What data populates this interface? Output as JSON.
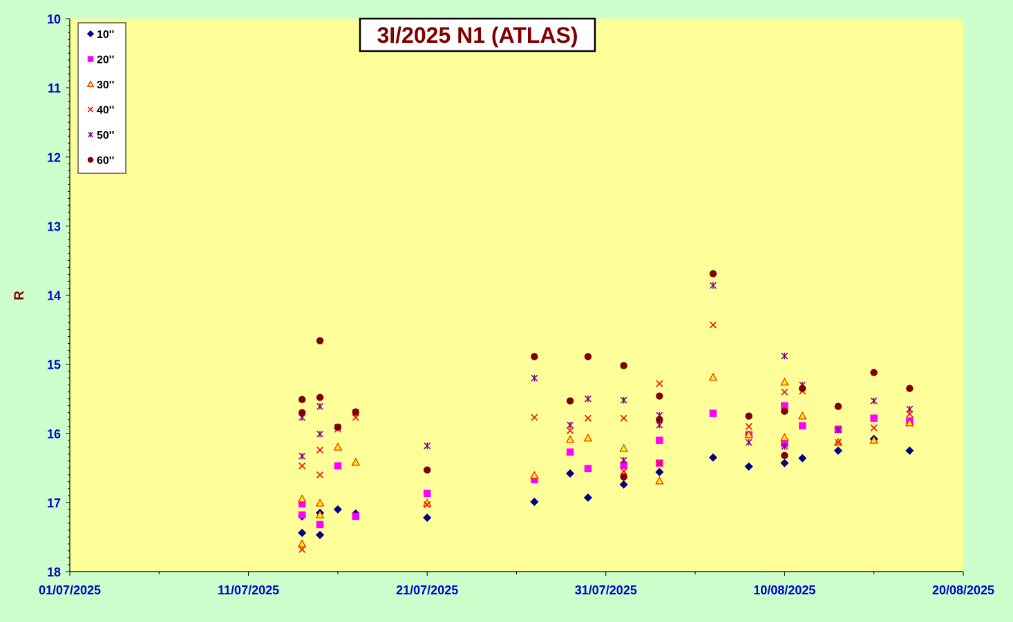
{
  "chart_data": {
    "type": "scatter",
    "title": "3I/2025 N1 (ATLAS)",
    "xlabel": "",
    "ylabel": "R",
    "x_axis": {
      "min": "2025-07-01",
      "max": "2025-08-20",
      "tick_labels": [
        "01/07/2025",
        "11/07/2025",
        "21/07/2025",
        "31/07/2025",
        "10/08/2025",
        "20/08/2025"
      ],
      "tick_values": [
        "2025-07-01",
        "2025-07-11",
        "2025-07-21",
        "2025-07-31",
        "2025-08-10",
        "2025-08-20"
      ]
    },
    "y_axis": {
      "min": 10,
      "max": 18,
      "reversed": true,
      "tick_labels": [
        "10",
        "11",
        "12",
        "13",
        "14",
        "15",
        "16",
        "17",
        "18"
      ],
      "tick_values": [
        10,
        11,
        12,
        13,
        14,
        15,
        16,
        17,
        18
      ]
    },
    "grid": false,
    "legend_position": "top-left",
    "colors": {
      "page_background": "#ccffcc",
      "plot_background": "#ffff99",
      "axis_text": "#0000cc",
      "title_text": "#800000",
      "label_text": "#800000"
    },
    "series": [
      {
        "name": "10''",
        "marker": "diamond",
        "color": "#000080",
        "points": [
          {
            "x": "2025-07-14",
            "y": 17.44
          },
          {
            "x": "2025-07-14",
            "y": 17.2
          },
          {
            "x": "2025-07-15",
            "y": 17.47
          },
          {
            "x": "2025-07-15",
            "y": 17.15
          },
          {
            "x": "2025-07-16",
            "y": 17.1
          },
          {
            "x": "2025-07-17",
            "y": 17.16
          },
          {
            "x": "2025-07-21",
            "y": 17.22
          },
          {
            "x": "2025-07-27",
            "y": 16.99
          },
          {
            "x": "2025-07-29",
            "y": 16.58
          },
          {
            "x": "2025-07-30",
            "y": 16.93
          },
          {
            "x": "2025-08-01",
            "y": 16.74
          },
          {
            "x": "2025-08-03",
            "y": 16.56
          },
          {
            "x": "2025-08-06",
            "y": 16.35
          },
          {
            "x": "2025-08-08",
            "y": 16.48
          },
          {
            "x": "2025-08-10",
            "y": 16.43
          },
          {
            "x": "2025-08-11",
            "y": 16.36
          },
          {
            "x": "2025-08-13",
            "y": 16.25
          },
          {
            "x": "2025-08-15",
            "y": 16.08
          },
          {
            "x": "2025-08-17",
            "y": 16.25
          }
        ]
      },
      {
        "name": "20''",
        "marker": "square",
        "color": "#ff00ff",
        "points": [
          {
            "x": "2025-07-14",
            "y": 17.02
          },
          {
            "x": "2025-07-14",
            "y": 17.18
          },
          {
            "x": "2025-07-15",
            "y": 17.32
          },
          {
            "x": "2025-07-16",
            "y": 16.47
          },
          {
            "x": "2025-07-17",
            "y": 17.2
          },
          {
            "x": "2025-07-21",
            "y": 16.87
          },
          {
            "x": "2025-07-27",
            "y": 16.67
          },
          {
            "x": "2025-07-29",
            "y": 16.27
          },
          {
            "x": "2025-07-30",
            "y": 16.51
          },
          {
            "x": "2025-08-01",
            "y": 16.46
          },
          {
            "x": "2025-08-03",
            "y": 16.1
          },
          {
            "x": "2025-08-03",
            "y": 16.43
          },
          {
            "x": "2025-08-06",
            "y": 15.71
          },
          {
            "x": "2025-08-08",
            "y": 16.02
          },
          {
            "x": "2025-08-10",
            "y": 15.6
          },
          {
            "x": "2025-08-10",
            "y": 16.15
          },
          {
            "x": "2025-08-11",
            "y": 15.89
          },
          {
            "x": "2025-08-13",
            "y": 15.94
          },
          {
            "x": "2025-08-15",
            "y": 15.78
          },
          {
            "x": "2025-08-17",
            "y": 15.82
          }
        ]
      },
      {
        "name": "30''",
        "marker": "triangle",
        "color": "#ffff00",
        "stroke": "#ff0000",
        "points": [
          {
            "x": "2025-07-14",
            "y": 16.95
          },
          {
            "x": "2025-07-14",
            "y": 17.6
          },
          {
            "x": "2025-07-15",
            "y": 17.01
          },
          {
            "x": "2025-07-15",
            "y": 17.18
          },
          {
            "x": "2025-07-16",
            "y": 16.2
          },
          {
            "x": "2025-07-17",
            "y": 16.42
          },
          {
            "x": "2025-07-21",
            "y": 17.01
          },
          {
            "x": "2025-07-27",
            "y": 16.61
          },
          {
            "x": "2025-07-29",
            "y": 16.09
          },
          {
            "x": "2025-07-30",
            "y": 16.07
          },
          {
            "x": "2025-08-01",
            "y": 16.22
          },
          {
            "x": "2025-08-03",
            "y": 16.69
          },
          {
            "x": "2025-08-06",
            "y": 15.19
          },
          {
            "x": "2025-08-08",
            "y": 16.02
          },
          {
            "x": "2025-08-10",
            "y": 15.26
          },
          {
            "x": "2025-08-10",
            "y": 16.06
          },
          {
            "x": "2025-08-11",
            "y": 15.75
          },
          {
            "x": "2025-08-13",
            "y": 16.13
          },
          {
            "x": "2025-08-15",
            "y": 16.1
          },
          {
            "x": "2025-08-17",
            "y": 15.85
          }
        ]
      },
      {
        "name": "40''",
        "marker": "x",
        "color": "#ff0000",
        "points": [
          {
            "x": "2025-07-14",
            "y": 16.47
          },
          {
            "x": "2025-07-14",
            "y": 17.68
          },
          {
            "x": "2025-07-15",
            "y": 16.24
          },
          {
            "x": "2025-07-15",
            "y": 16.6
          },
          {
            "x": "2025-07-16",
            "y": 15.94
          },
          {
            "x": "2025-07-17",
            "y": 15.77
          },
          {
            "x": "2025-07-21",
            "y": 17.03
          },
          {
            "x": "2025-07-27",
            "y": 15.77
          },
          {
            "x": "2025-07-29",
            "y": 15.96
          },
          {
            "x": "2025-07-30",
            "y": 15.78
          },
          {
            "x": "2025-08-01",
            "y": 15.78
          },
          {
            "x": "2025-08-01",
            "y": 16.55
          },
          {
            "x": "2025-08-03",
            "y": 15.28
          },
          {
            "x": "2025-08-03",
            "y": 16.43
          },
          {
            "x": "2025-08-06",
            "y": 14.43
          },
          {
            "x": "2025-08-08",
            "y": 15.9
          },
          {
            "x": "2025-08-10",
            "y": 15.4
          },
          {
            "x": "2025-08-11",
            "y": 15.39
          },
          {
            "x": "2025-08-13",
            "y": 16.13
          },
          {
            "x": "2025-08-15",
            "y": 15.92
          },
          {
            "x": "2025-08-17",
            "y": 15.72
          }
        ]
      },
      {
        "name": "50''",
        "marker": "star",
        "color": "#800080",
        "points": [
          {
            "x": "2025-07-14",
            "y": 16.33
          },
          {
            "x": "2025-07-14",
            "y": 15.77
          },
          {
            "x": "2025-07-15",
            "y": 15.61
          },
          {
            "x": "2025-07-15",
            "y": 16.01
          },
          {
            "x": "2025-07-16",
            "y": 15.91
          },
          {
            "x": "2025-07-17",
            "y": 15.7
          },
          {
            "x": "2025-07-21",
            "y": 16.18
          },
          {
            "x": "2025-07-27",
            "y": 15.2
          },
          {
            "x": "2025-07-29",
            "y": 15.88
          },
          {
            "x": "2025-07-30",
            "y": 15.5
          },
          {
            "x": "2025-08-01",
            "y": 15.52
          },
          {
            "x": "2025-08-01",
            "y": 16.39
          },
          {
            "x": "2025-08-03",
            "y": 15.74
          },
          {
            "x": "2025-08-03",
            "y": 15.88
          },
          {
            "x": "2025-08-06",
            "y": 13.86
          },
          {
            "x": "2025-08-08",
            "y": 16.13
          },
          {
            "x": "2025-08-10",
            "y": 14.88
          },
          {
            "x": "2025-08-10",
            "y": 16.19
          },
          {
            "x": "2025-08-11",
            "y": 15.3
          },
          {
            "x": "2025-08-13",
            "y": 15.95
          },
          {
            "x": "2025-08-15",
            "y": 15.53
          },
          {
            "x": "2025-08-17",
            "y": 15.65
          }
        ]
      },
      {
        "name": "60''",
        "marker": "circle",
        "color": "#800000",
        "points": [
          {
            "x": "2025-07-14",
            "y": 15.51
          },
          {
            "x": "2025-07-14",
            "y": 15.7
          },
          {
            "x": "2025-07-15",
            "y": 14.66
          },
          {
            "x": "2025-07-15",
            "y": 15.48
          },
          {
            "x": "2025-07-16",
            "y": 15.91
          },
          {
            "x": "2025-07-17",
            "y": 15.69
          },
          {
            "x": "2025-07-21",
            "y": 16.53
          },
          {
            "x": "2025-07-27",
            "y": 14.89
          },
          {
            "x": "2025-07-29",
            "y": 15.53
          },
          {
            "x": "2025-07-30",
            "y": 14.89
          },
          {
            "x": "2025-08-01",
            "y": 15.02
          },
          {
            "x": "2025-08-01",
            "y": 16.63
          },
          {
            "x": "2025-08-03",
            "y": 15.46
          },
          {
            "x": "2025-08-03",
            "y": 15.8
          },
          {
            "x": "2025-08-06",
            "y": 13.69
          },
          {
            "x": "2025-08-08",
            "y": 15.75
          },
          {
            "x": "2025-08-10",
            "y": 15.68
          },
          {
            "x": "2025-08-10",
            "y": 16.32
          },
          {
            "x": "2025-08-11",
            "y": 15.35
          },
          {
            "x": "2025-08-13",
            "y": 15.61
          },
          {
            "x": "2025-08-15",
            "y": 15.12
          },
          {
            "x": "2025-08-17",
            "y": 15.35
          }
        ]
      }
    ]
  }
}
